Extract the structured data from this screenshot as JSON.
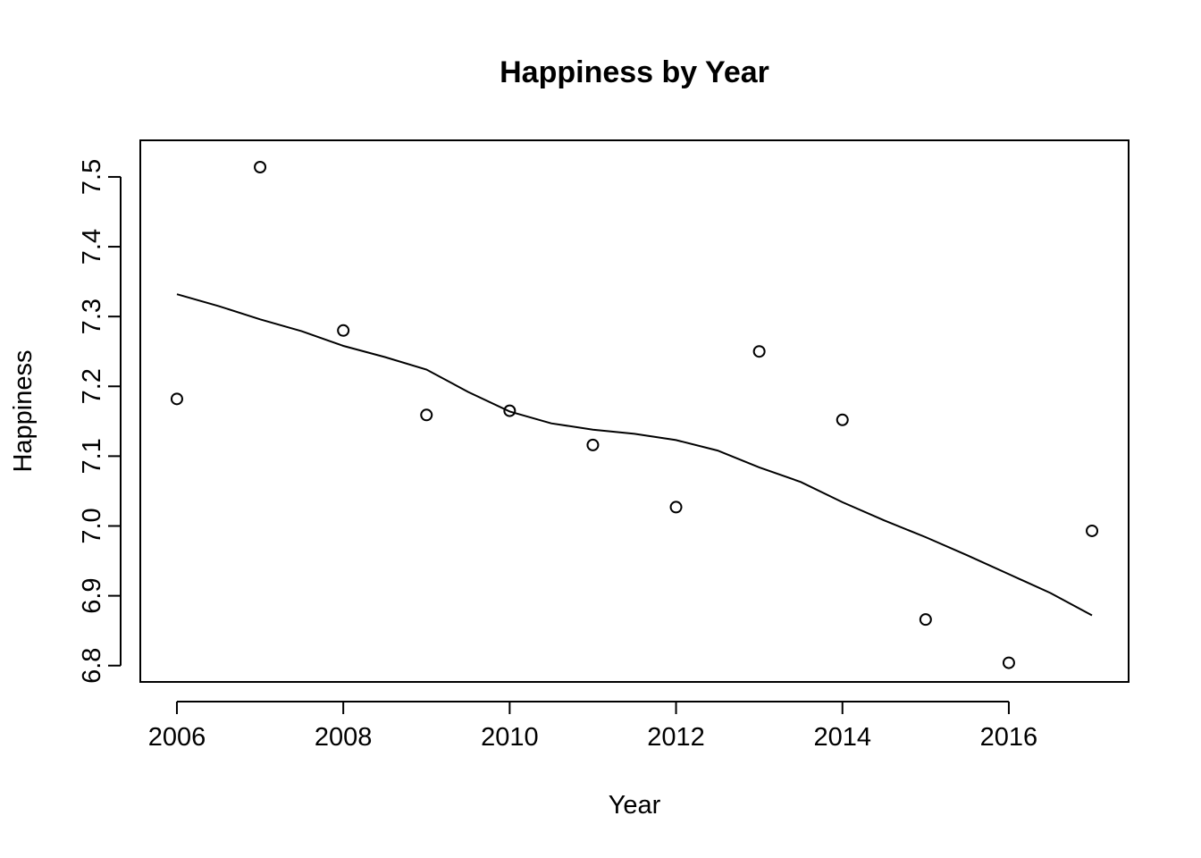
{
  "chart_data": {
    "type": "scatter",
    "title": "Happiness by Year",
    "xlabel": "Year",
    "ylabel": "Happiness",
    "xlim": [
      2005.56,
      2017.44
    ],
    "ylim": [
      6.7766,
      7.5524
    ],
    "x_ticks": [
      2006,
      2008,
      2010,
      2012,
      2014,
      2016
    ],
    "x_tick_labels": [
      "2006",
      "2008",
      "2010",
      "2012",
      "2014",
      "2016"
    ],
    "y_ticks": [
      6.8,
      6.9,
      7.0,
      7.1,
      7.2,
      7.3,
      7.4,
      7.5
    ],
    "y_tick_labels": [
      "6.8",
      "6.9",
      "7.0",
      "7.1",
      "7.2",
      "7.3",
      "7.4",
      "7.5"
    ],
    "grid": false,
    "points": {
      "x": [
        2006,
        2007,
        2008,
        2009,
        2010,
        2011,
        2012,
        2013,
        2014,
        2015,
        2016,
        2017
      ],
      "y": [
        7.182,
        7.514,
        7.28,
        7.159,
        7.165,
        7.116,
        7.027,
        7.25,
        7.152,
        6.866,
        6.804,
        6.993
      ]
    },
    "smooth_line": {
      "x": [
        2006,
        2006.5,
        2007,
        2007.5,
        2008,
        2008.5,
        2009,
        2009.5,
        2010,
        2010.5,
        2011,
        2011.5,
        2012,
        2012.5,
        2013,
        2013.5,
        2014,
        2014.5,
        2015,
        2015.5,
        2016,
        2016.5,
        2017
      ],
      "y": [
        7.332,
        7.315,
        7.296,
        7.279,
        7.258,
        7.242,
        7.224,
        7.192,
        7.164,
        7.147,
        7.138,
        7.132,
        7.123,
        7.108,
        7.084,
        7.063,
        7.034,
        7.008,
        6.984,
        6.958,
        6.931,
        6.904,
        6.872
      ]
    }
  }
}
